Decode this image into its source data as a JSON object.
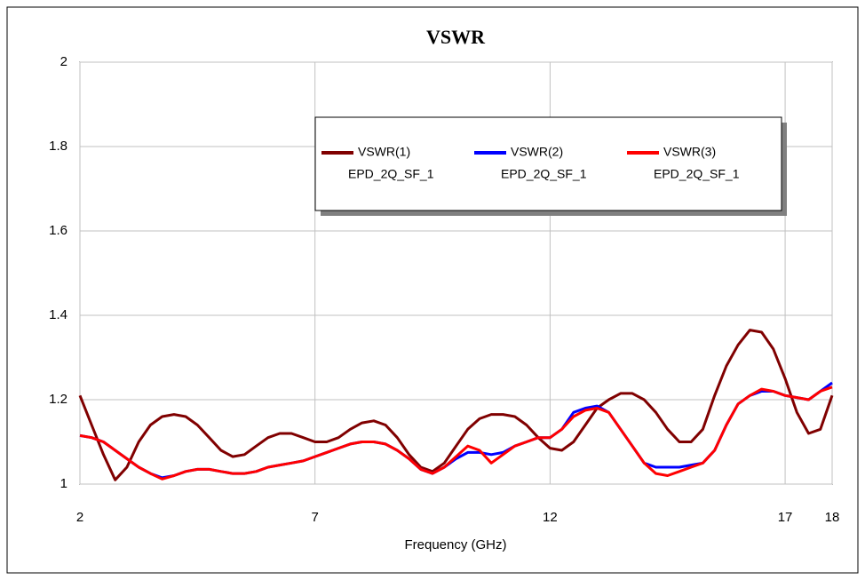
{
  "chart_data": {
    "type": "line",
    "title": "VSWR",
    "x_label": "Frequency (GHz)",
    "xlim": [
      2,
      18
    ],
    "xticks": [
      2,
      7,
      12,
      17,
      18
    ],
    "ylim": [
      1,
      2
    ],
    "yticks": [
      1,
      1.2,
      1.4,
      1.6,
      1.8,
      2
    ],
    "grid": true,
    "legend": "top",
    "x": [
      2,
      2.25,
      2.5,
      2.75,
      3,
      3.25,
      3.5,
      3.75,
      4,
      4.25,
      4.5,
      4.75,
      5,
      5.25,
      5.5,
      5.75,
      6,
      6.25,
      6.5,
      6.75,
      7,
      7.25,
      7.5,
      7.75,
      8,
      8.25,
      8.5,
      8.75,
      9,
      9.25,
      9.5,
      9.75,
      10,
      10.25,
      10.5,
      10.75,
      11,
      11.25,
      11.5,
      11.75,
      12,
      12.25,
      12.5,
      12.75,
      13,
      13.25,
      13.5,
      13.75,
      14,
      14.25,
      14.5,
      14.75,
      15,
      15.25,
      15.5,
      15.75,
      16,
      16.25,
      16.5,
      16.75,
      17,
      17.25,
      17.5,
      17.75,
      18
    ],
    "series": [
      {
        "name": "VSWR(1)",
        "source": "EPD_2Q_SF_1",
        "color": "#800000",
        "values": [
          1.21,
          1.14,
          1.07,
          1.01,
          1.04,
          1.1,
          1.14,
          1.16,
          1.165,
          1.16,
          1.14,
          1.11,
          1.08,
          1.065,
          1.07,
          1.09,
          1.11,
          1.12,
          1.12,
          1.11,
          1.1,
          1.1,
          1.11,
          1.13,
          1.145,
          1.15,
          1.14,
          1.11,
          1.07,
          1.04,
          1.03,
          1.05,
          1.09,
          1.13,
          1.155,
          1.165,
          1.165,
          1.16,
          1.14,
          1.11,
          1.085,
          1.08,
          1.1,
          1.14,
          1.18,
          1.2,
          1.215,
          1.215,
          1.2,
          1.17,
          1.13,
          1.1,
          1.1,
          1.13,
          1.21,
          1.28,
          1.33,
          1.365,
          1.36,
          1.32,
          1.25,
          1.17,
          1.12,
          1.13,
          1.21
        ]
      },
      {
        "name": "VSWR(2)",
        "source": "EPD_2Q_SF_1",
        "color": "#0000ff",
        "values": [
          1.115,
          1.11,
          1.1,
          1.08,
          1.06,
          1.04,
          1.025,
          1.015,
          1.02,
          1.03,
          1.035,
          1.035,
          1.03,
          1.025,
          1.025,
          1.03,
          1.04,
          1.045,
          1.05,
          1.055,
          1.065,
          1.075,
          1.085,
          1.095,
          1.1,
          1.1,
          1.095,
          1.08,
          1.06,
          1.035,
          1.025,
          1.04,
          1.06,
          1.075,
          1.075,
          1.07,
          1.075,
          1.09,
          1.1,
          1.11,
          1.11,
          1.13,
          1.17,
          1.18,
          1.185,
          1.17,
          1.13,
          1.09,
          1.05,
          1.04,
          1.04,
          1.04,
          1.045,
          1.05,
          1.08,
          1.14,
          1.19,
          1.21,
          1.22,
          1.22,
          1.21,
          1.205,
          1.2,
          1.22,
          1.24
        ]
      },
      {
        "name": "VSWR(3)",
        "source": "EPD_2Q_SF_1",
        "color": "#ff0000",
        "values": [
          1.115,
          1.11,
          1.1,
          1.08,
          1.06,
          1.04,
          1.025,
          1.012,
          1.02,
          1.03,
          1.035,
          1.035,
          1.03,
          1.025,
          1.025,
          1.03,
          1.04,
          1.045,
          1.05,
          1.055,
          1.065,
          1.075,
          1.085,
          1.095,
          1.1,
          1.1,
          1.095,
          1.08,
          1.06,
          1.035,
          1.025,
          1.04,
          1.065,
          1.09,
          1.08,
          1.05,
          1.07,
          1.09,
          1.1,
          1.11,
          1.11,
          1.13,
          1.16,
          1.175,
          1.18,
          1.17,
          1.13,
          1.09,
          1.05,
          1.025,
          1.02,
          1.03,
          1.04,
          1.05,
          1.08,
          1.14,
          1.19,
          1.21,
          1.225,
          1.22,
          1.21,
          1.205,
          1.2,
          1.22,
          1.23
        ]
      }
    ]
  }
}
